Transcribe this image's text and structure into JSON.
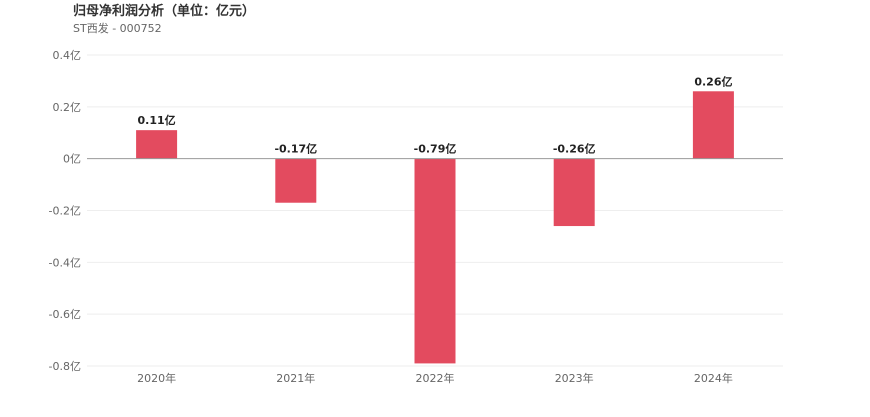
{
  "chart_data": {
    "type": "bar",
    "title": "归母净利润分析（单位：亿元）",
    "subtitle": "ST西发 - 000752",
    "categories": [
      "2020年",
      "2021年",
      "2022年",
      "2023年",
      "2024年"
    ],
    "values": [
      0.11,
      -0.17,
      -0.79,
      -0.26,
      0.26
    ],
    "value_labels": [
      "0.11亿",
      "-0.17亿",
      "-0.79亿",
      "-0.26亿",
      "0.26亿"
    ],
    "y_ticks": [
      0.4,
      0.2,
      0,
      -0.2,
      -0.4,
      -0.6,
      -0.8
    ],
    "y_tick_labels": [
      "0.4亿",
      "0.2亿",
      "0亿",
      "-0.2亿",
      "-0.4亿",
      "-0.6亿",
      "-0.8亿"
    ],
    "ylim": [
      -0.8,
      0.4
    ],
    "grid": true,
    "legend": "none",
    "bar_color": "#e34b5f",
    "grid_color": "#eeeeee",
    "zero_line_color": "#999999",
    "text_color": "#666666",
    "label_color": "#222222"
  }
}
